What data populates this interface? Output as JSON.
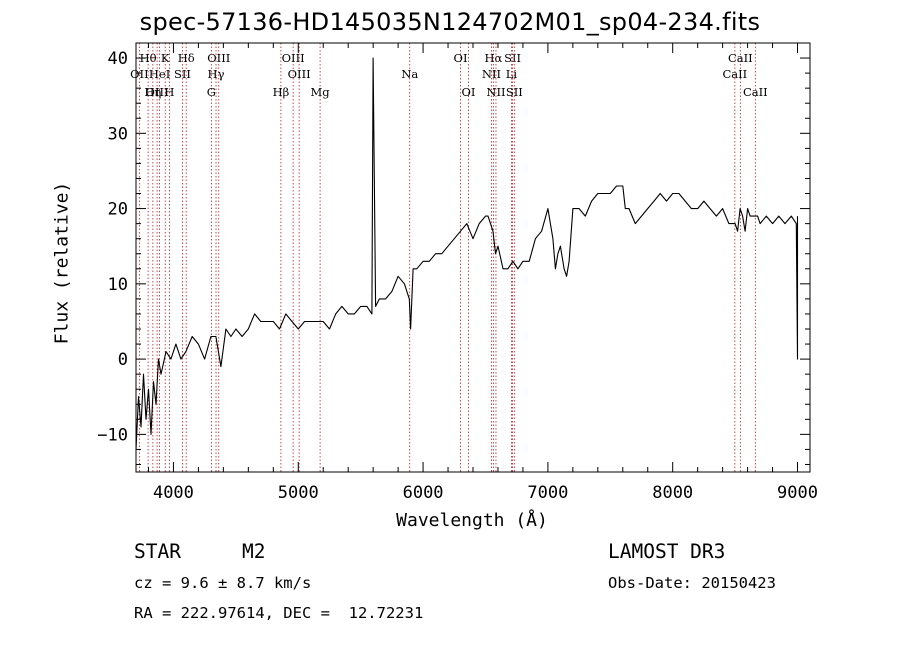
{
  "chart_data": {
    "type": "line",
    "title": "spec-57136-HD145035N124702M01_sp04-234.fits",
    "xlabel": "Wavelength (Å)",
    "ylabel": "Flux (relative)",
    "xlim": [
      3700,
      9100
    ],
    "ylim": [
      -15,
      42
    ],
    "x_ticks": [
      4000,
      5000,
      6000,
      7000,
      8000,
      9000
    ],
    "y_ticks": [
      -10,
      0,
      10,
      20,
      30,
      40
    ],
    "x_tick_labels": [
      "4000",
      "5000",
      "6000",
      "7000",
      "8000",
      "9000"
    ],
    "y_tick_labels": [
      "−10",
      "0",
      "10",
      "20",
      "30",
      "40"
    ],
    "series": [
      {
        "name": "flux",
        "x": [
          3700,
          3720,
          3740,
          3760,
          3780,
          3800,
          3820,
          3840,
          3860,
          3880,
          3900,
          3940,
          3980,
          4020,
          4060,
          4100,
          4150,
          4200,
          4250,
          4300,
          4340,
          4380,
          4420,
          4460,
          4500,
          4550,
          4600,
          4650,
          4700,
          4750,
          4800,
          4850,
          4900,
          4950,
          5000,
          5050,
          5100,
          5150,
          5200,
          5250,
          5300,
          5350,
          5400,
          5450,
          5500,
          5550,
          5590,
          5600,
          5620,
          5650,
          5700,
          5750,
          5800,
          5850,
          5890,
          5900,
          5920,
          5950,
          6000,
          6050,
          6100,
          6150,
          6200,
          6250,
          6300,
          6350,
          6400,
          6450,
          6500,
          6520,
          6540,
          6560,
          6580,
          6600,
          6640,
          6680,
          6720,
          6760,
          6800,
          6850,
          6900,
          6950,
          7000,
          7040,
          7060,
          7080,
          7100,
          7130,
          7150,
          7170,
          7200,
          7250,
          7300,
          7350,
          7400,
          7450,
          7500,
          7550,
          7600,
          7620,
          7650,
          7700,
          7750,
          7800,
          7850,
          7900,
          7950,
          8000,
          8050,
          8100,
          8150,
          8200,
          8250,
          8300,
          8350,
          8400,
          8450,
          8500,
          8520,
          8540,
          8560,
          8580,
          8600,
          8620,
          8650,
          8680,
          8700,
          8750,
          8800,
          8850,
          8900,
          8950,
          8990,
          9000,
          9000
        ],
        "values": [
          -12,
          -5,
          -9,
          -2,
          -8,
          -4,
          -10,
          -3,
          -6,
          0,
          -2,
          1,
          0,
          2,
          0,
          1,
          3,
          2,
          0,
          3,
          3,
          -1,
          4,
          3,
          4,
          3,
          4,
          6,
          5,
          5,
          5,
          4,
          6,
          5,
          4,
          5,
          5,
          5,
          5,
          4,
          6,
          7,
          6,
          6,
          7,
          7,
          6,
          40,
          7,
          8,
          8,
          9,
          11,
          10,
          8,
          4,
          12,
          12,
          13,
          13,
          14,
          14,
          15,
          16,
          17,
          18,
          16,
          18,
          19,
          19,
          18,
          17,
          14,
          15,
          12,
          12,
          13,
          12,
          13,
          13,
          16,
          17,
          20,
          16,
          12,
          14,
          15,
          12,
          11,
          13,
          20,
          20,
          19,
          21,
          22,
          22,
          22,
          23,
          23,
          20,
          20,
          18,
          19,
          20,
          21,
          22,
          21,
          22,
          22,
          21,
          20,
          20,
          21,
          20,
          19,
          20,
          18,
          18,
          17,
          20,
          19,
          17,
          20,
          19,
          19,
          19,
          18,
          19,
          18,
          19,
          18,
          19,
          18,
          0,
          19
        ]
      }
    ],
    "line_markers": [
      {
        "label": "Hθ",
        "wavelength": 3797,
        "row": 1
      },
      {
        "label": "OII",
        "wavelength": 3727,
        "row": 2
      },
      {
        "label": "OIII",
        "wavelength": 3869,
        "row": 3
      },
      {
        "label": "HeI",
        "wavelength": 3889,
        "row": 2
      },
      {
        "label": "K",
        "wavelength": 3934,
        "row": 1
      },
      {
        "label": "Hη",
        "wavelength": 3835,
        "row": 3
      },
      {
        "label": "SII",
        "wavelength": 4072,
        "row": 2
      },
      {
        "label": "H",
        "wavelength": 3968,
        "row": 3
      },
      {
        "label": "Hδ",
        "wavelength": 4102,
        "row": 1
      },
      {
        "label": "OIII",
        "wavelength": 4363,
        "row": 1
      },
      {
        "label": "Hγ",
        "wavelength": 4341,
        "row": 2
      },
      {
        "label": "G",
        "wavelength": 4304,
        "row": 3
      },
      {
        "label": "OIII",
        "wavelength": 4959,
        "row": 1
      },
      {
        "label": "OIII",
        "wavelength": 5007,
        "row": 2
      },
      {
        "label": "Hβ",
        "wavelength": 4861,
        "row": 3
      },
      {
        "label": "Mg",
        "wavelength": 5175,
        "row": 3
      },
      {
        "label": "Na",
        "wavelength": 5893,
        "row": 2
      },
      {
        "label": "OI",
        "wavelength": 6300,
        "row": 1
      },
      {
        "label": "OI",
        "wavelength": 6364,
        "row": 3
      },
      {
        "label": "Hα",
        "wavelength": 6563,
        "row": 1
      },
      {
        "label": "NII",
        "wavelength": 6548,
        "row": 2
      },
      {
        "label": "SII",
        "wavelength": 6717,
        "row": 1
      },
      {
        "label": "Li",
        "wavelength": 6708,
        "row": 2
      },
      {
        "label": "NII",
        "wavelength": 6584,
        "row": 3
      },
      {
        "label": "SII",
        "wavelength": 6731,
        "row": 3
      },
      {
        "label": "CaII",
        "wavelength": 8542,
        "row": 1
      },
      {
        "label": "CaII",
        "wavelength": 8498,
        "row": 2
      },
      {
        "label": "CaII",
        "wavelength": 8662,
        "row": 3
      }
    ]
  },
  "info": {
    "object_class": "STAR",
    "subclass": "M2",
    "survey": "LAMOST DR3",
    "redshift": "cz = 9.6 ± 8.7 km/s",
    "obs_date": "Obs-Date: 20150423",
    "coords": "RA = 222.97614, DEC =  12.72231"
  },
  "colors": {
    "line": "#000000",
    "marker": "#b22222",
    "axes": "#000000"
  }
}
